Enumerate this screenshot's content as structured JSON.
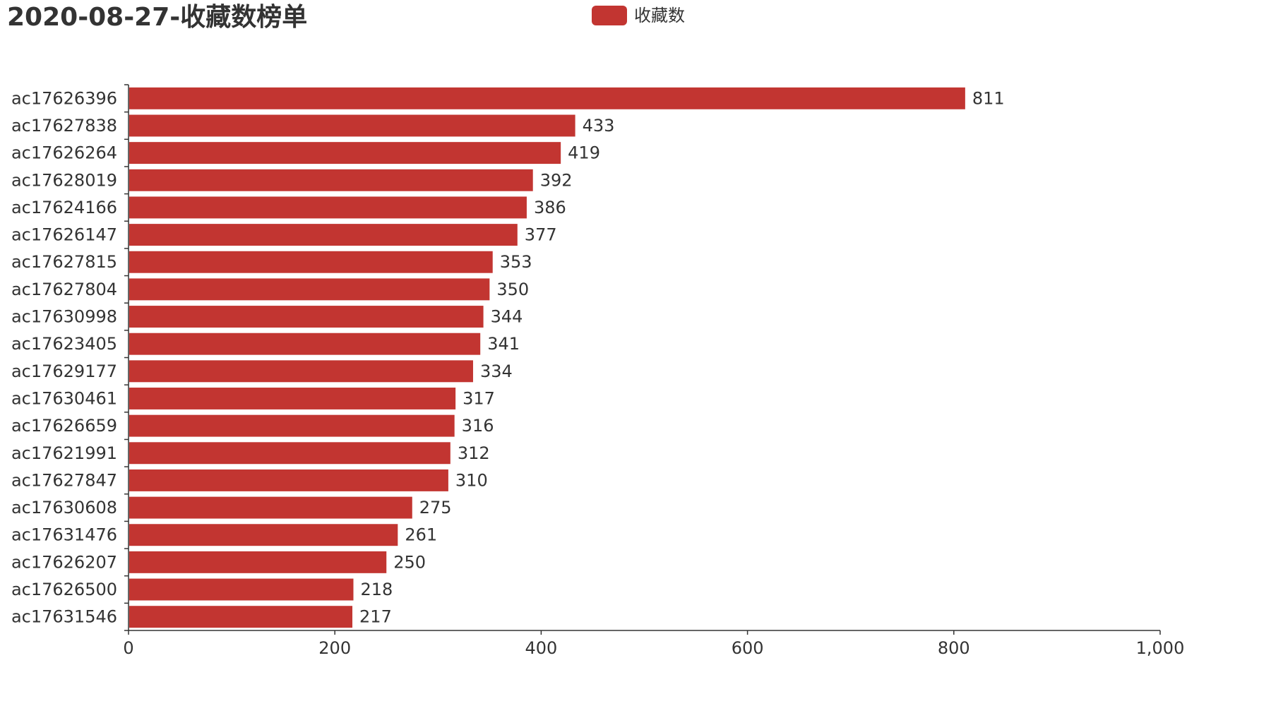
{
  "colors": {
    "bar": "#c23531",
    "axis": "#333333",
    "text": "#333333"
  },
  "chart_data": {
    "type": "bar",
    "orientation": "horizontal",
    "title": "2020-08-27-收藏数榜单",
    "legend": {
      "position": "top-center",
      "entries": [
        "收藏数"
      ]
    },
    "grid": false,
    "xlim": [
      0,
      1000
    ],
    "xticks": [
      0,
      200,
      400,
      600,
      800,
      1000
    ],
    "xtick_labels": [
      "0",
      "200",
      "400",
      "600",
      "800",
      "1,000"
    ],
    "categories": [
      "ac17626396",
      "ac17627838",
      "ac17626264",
      "ac17628019",
      "ac17624166",
      "ac17626147",
      "ac17627815",
      "ac17627804",
      "ac17630998",
      "ac17623405",
      "ac17629177",
      "ac17630461",
      "ac17626659",
      "ac17621991",
      "ac17627847",
      "ac17630608",
      "ac17631476",
      "ac17626207",
      "ac17626500",
      "ac17631546"
    ],
    "series": [
      {
        "name": "收藏数",
        "values": [
          811,
          433,
          419,
          392,
          386,
          377,
          353,
          350,
          344,
          341,
          334,
          317,
          316,
          312,
          310,
          275,
          261,
          250,
          218,
          217
        ]
      }
    ]
  }
}
